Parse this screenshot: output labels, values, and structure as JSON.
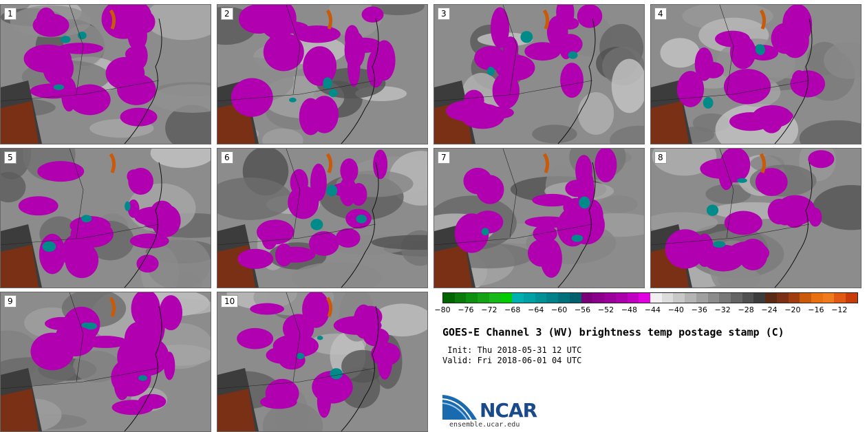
{
  "panels": [
    {
      "label": "1"
    },
    {
      "label": "2"
    },
    {
      "label": "3"
    },
    {
      "label": "4"
    },
    {
      "label": "5"
    },
    {
      "label": "6"
    },
    {
      "label": "7"
    },
    {
      "label": "8"
    },
    {
      "label": "9"
    },
    {
      "label": "10"
    }
  ],
  "colorbar": {
    "colors": [
      "#006400",
      "#0a7a0a",
      "#0f8f0f",
      "#14a314",
      "#19b819",
      "#00cc00",
      "#00b0b0",
      "#00a0a5",
      "#009096",
      "#008088",
      "#00707a",
      "#00606b",
      "#7a007a",
      "#8a008a",
      "#9a009a",
      "#aa00aa",
      "#c000c0",
      "#e000e0",
      "#f0f0f0",
      "#dcdcdc",
      "#c8c8c8",
      "#b4b4b4",
      "#a0a0a0",
      "#8c8c8c",
      "#787878",
      "#646464",
      "#505050",
      "#3c3c3c",
      "#5a2a14",
      "#7a3014",
      "#a03c10",
      "#c85a0a",
      "#e87010",
      "#f07a1e",
      "#e05a14",
      "#c83c0a"
    ],
    "ticks": [
      "−80",
      "−76",
      "−72",
      "−68",
      "−64",
      "−60",
      "−56",
      "−52",
      "−48",
      "−44",
      "−40",
      "−36",
      "−32",
      "−28",
      "−24",
      "−20",
      "−16",
      "−12"
    ]
  },
  "title": "GOES-E Channel 3 (WV) brightness temp postage stamp (C)",
  "init": " Init: Thu 2018-05-31 12 UTC",
  "valid": "Valid: Fri 2018-06-01 04 UTC",
  "logo_text": "NCAR",
  "site": "ensemble.ucar.edu"
}
